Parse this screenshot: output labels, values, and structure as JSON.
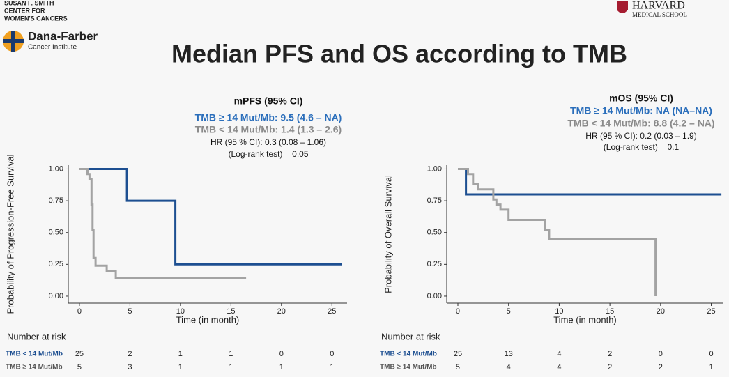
{
  "slide": {
    "title": "Median PFS and OS according to TMB",
    "logo_left": [
      "SUSAN F. SMITH",
      "CENTER FOR",
      "WOMEN'S CANCERS"
    ],
    "logo_dfci": [
      "Dana-Farber",
      "Cancer Institute"
    ],
    "logo_right": [
      "HARVARD",
      "MEDICAL SCHOOL"
    ]
  },
  "chart_data": [
    {
      "type": "line",
      "step": true,
      "annotations": [
        {
          "text": "mPFS (95% CI)",
          "color": "#111111",
          "bold": true
        },
        {
          "text": "TMB ≥ 14 Mut/Mb: 9.5 (4.6 – NA)",
          "color": "#2a6ebb",
          "bold": true
        },
        {
          "text": "TMB < 14 Mut/Mb: 1.4 (1.3 – 2.6)",
          "color": "#8a8a8a",
          "bold": true
        },
        {
          "text": "HR (95 % CI): 0.3 (0.08 – 1.06)",
          "color": "#111111",
          "bold": false
        },
        {
          "text": "(Log-rank test) = 0.05",
          "color": "#111111",
          "bold": false
        }
      ],
      "x_label": "Time (in month)",
      "y_label": "Probability of Progression-Free Survival",
      "xlim": [
        -1.1,
        26.5
      ],
      "ylim": [
        -0.055,
        1.03
      ],
      "xticks": [
        0,
        5,
        10,
        15,
        20,
        25
      ],
      "yticks": [
        {
          "value": 0,
          "label": "0.00"
        },
        {
          "value": 0.25,
          "label": "0.25"
        },
        {
          "value": 0.5,
          "label": "0.50"
        },
        {
          "value": 0.75,
          "label": "0.75"
        },
        {
          "value": 1,
          "label": "1.00"
        }
      ],
      "series": [
        {
          "name": "TMB ≥ 14 Mut/Mb",
          "color": "#1d4f91",
          "x": [
            0,
            4.7,
            4.7,
            9.5,
            9.5,
            26
          ],
          "values": [
            1,
            1,
            0.75,
            0.75,
            0.25,
            0.25
          ]
        },
        {
          "name": "TMB < 14 Mut/Mb",
          "color": "#a3a3a3",
          "x": [
            0,
            0.8,
            0.8,
            1.0,
            1.0,
            1.2,
            1.2,
            1.3,
            1.3,
            1.4,
            1.4,
            1.6,
            1.6,
            2.7,
            2.7,
            3.6,
            3.6,
            16.5
          ],
          "values": [
            1,
            1,
            0.96,
            0.96,
            0.92,
            0.92,
            0.72,
            0.72,
            0.52,
            0.52,
            0.3,
            0.3,
            0.24,
            0.24,
            0.2,
            0.2,
            0.14,
            0.14
          ]
        }
      ],
      "risk_table": {
        "title": "Number at risk",
        "rows": [
          {
            "name": "TMB < 14 Mut/Mb",
            "color": "#1d4f91",
            "values": [
              25,
              2,
              1,
              1,
              0,
              0
            ]
          },
          {
            "name": "TMB ≥ 14 Mut/Mb",
            "color": "#555555",
            "values": [
              5,
              3,
              1,
              1,
              1,
              1
            ]
          }
        ]
      }
    },
    {
      "type": "line",
      "step": true,
      "annotations": [
        {
          "text": "mOS (95% CI)",
          "color": "#111111",
          "bold": true
        },
        {
          "text": "TMB ≥ 14 Mut/Mb: NA (NA–NA)",
          "color": "#2a6ebb",
          "bold": true
        },
        {
          "text": "TMB < 14 Mut/Mb: 8.8 (4.2 – NA)",
          "color": "#8a8a8a",
          "bold": true
        },
        {
          "text": "HR (95 % CI): 0.2 (0.03 – 1.9)",
          "color": "#111111",
          "bold": false
        },
        {
          "text": "(Log-rank test) = 0.1",
          "color": "#111111",
          "bold": false
        }
      ],
      "x_label": "Time (in month)",
      "y_label": "Probability of Overall Survival",
      "xlim": [
        -1.1,
        26.2
      ],
      "ylim": [
        -0.055,
        1.03
      ],
      "xticks": [
        0,
        5,
        10,
        15,
        20,
        25
      ],
      "yticks": [
        {
          "value": 0,
          "label": "0.00"
        },
        {
          "value": 0.25,
          "label": "0.25"
        },
        {
          "value": 0.5,
          "label": "0.50"
        },
        {
          "value": 0.75,
          "label": "0.75"
        },
        {
          "value": 1,
          "label": "1.00"
        }
      ],
      "series": [
        {
          "name": "TMB ≥ 14 Mut/Mb",
          "color": "#1d4f91",
          "x": [
            0,
            0.8,
            0.8,
            26
          ],
          "values": [
            1,
            1,
            0.8,
            0.8
          ]
        },
        {
          "name": "TMB < 14 Mut/Mb",
          "color": "#a3a3a3",
          "x": [
            0,
            1.0,
            1.0,
            1.5,
            1.5,
            2.0,
            2.0,
            3.5,
            3.5,
            3.8,
            3.8,
            4.2,
            4.2,
            5.0,
            5.0,
            8.6,
            8.6,
            9.0,
            9.0,
            19.5,
            19.5
          ],
          "values": [
            1,
            1,
            0.96,
            0.96,
            0.88,
            0.88,
            0.84,
            0.84,
            0.76,
            0.76,
            0.72,
            0.72,
            0.68,
            0.68,
            0.6,
            0.6,
            0.52,
            0.52,
            0.45,
            0.45,
            0
          ]
        }
      ],
      "risk_table": {
        "title": "Number at risk",
        "rows": [
          {
            "name": "TMB < 14 Mut/Mb",
            "color": "#1d4f91",
            "values": [
              25,
              13,
              4,
              2,
              0,
              0
            ]
          },
          {
            "name": "TMB ≥ 14 Mut/Mb",
            "color": "#555555",
            "values": [
              5,
              4,
              4,
              2,
              2,
              1
            ]
          }
        ]
      }
    }
  ]
}
